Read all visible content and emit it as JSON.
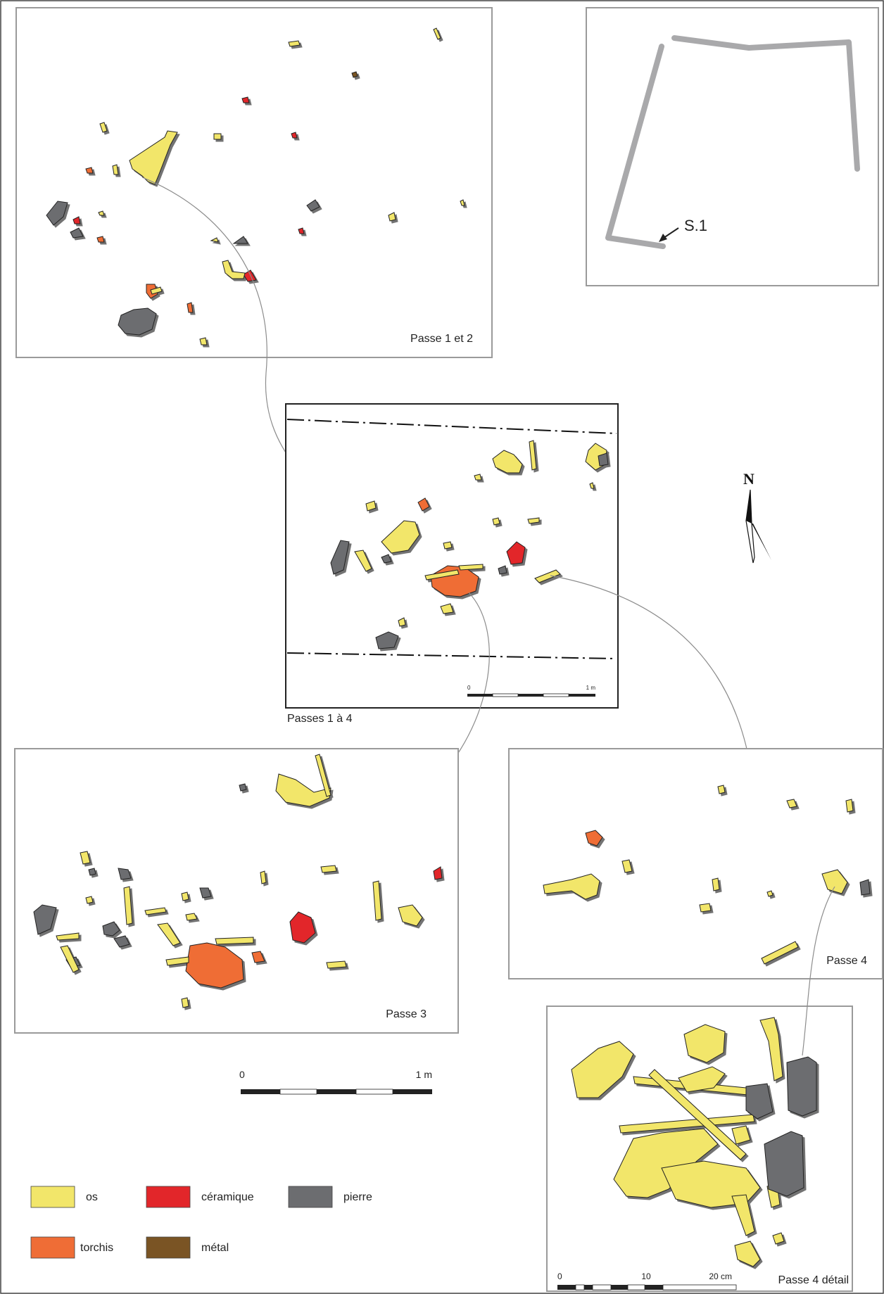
{
  "panels": {
    "passe_1_2": "Passe 1 et 2",
    "passes_1_4": "Passes 1 à 4",
    "passe_3": "Passe 3",
    "passe_4": "Passe 4",
    "passe_4_detail": "Passe 4 détail"
  },
  "inset": {
    "structure_label": "S.1"
  },
  "north": "N",
  "scales": {
    "central": {
      "start": "0",
      "end": "1 m"
    },
    "main": {
      "start": "0",
      "end": "1 m"
    },
    "detail": {
      "start": "0",
      "mid": "10",
      "end": "20 cm"
    }
  },
  "legend": [
    {
      "label": "os",
      "color": "#f2e66a"
    },
    {
      "label": "céramique",
      "color": "#e2262a"
    },
    {
      "label": "pierre",
      "color": "#6c6d70"
    },
    {
      "label": "torchis",
      "color": "#ef6d36"
    },
    {
      "label": "métal",
      "color": "#7a5424"
    }
  ],
  "colors": {
    "os": "#f2e66a",
    "ceramique": "#e2262a",
    "pierre": "#6c6d70",
    "torchis": "#ef6d36",
    "metal": "#7a5424"
  }
}
